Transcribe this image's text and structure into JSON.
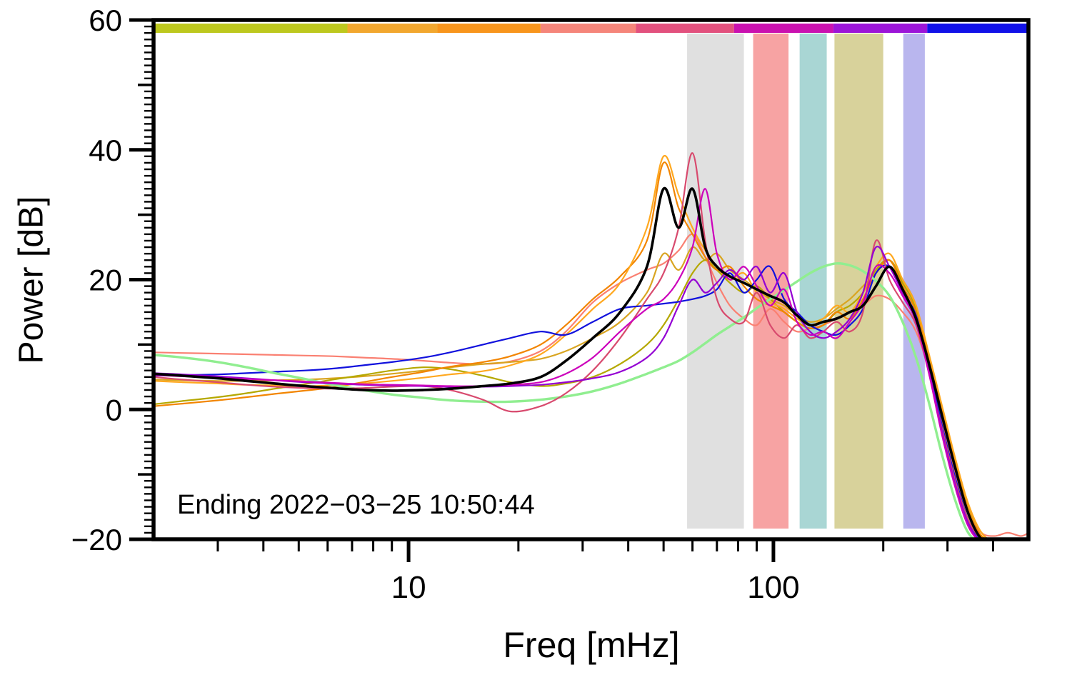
{
  "chart_data": {
    "type": "line",
    "title": "",
    "xlabel": "Freq [mHz]",
    "ylabel": "Power [dB]",
    "annotation": "Ending 2022−03−25 10:50:44",
    "x_scale": "log",
    "xlim": [
      2,
      500
    ],
    "ylim": [
      -20,
      60
    ],
    "grid": false,
    "legend": "none",
    "x_major_ticks": [
      10,
      100
    ],
    "x_major_labels": [
      "10",
      "100"
    ],
    "x_minor_ticks": [
      3,
      4,
      5,
      6,
      7,
      8,
      9,
      20,
      30,
      40,
      50,
      60,
      70,
      80,
      90,
      200,
      300,
      400
    ],
    "y_major_ticks": [
      -20,
      0,
      20,
      40,
      60
    ],
    "y_major_labels": [
      "−20",
      "0",
      "20",
      "40",
      "60"
    ],
    "y_minor_step": 1,
    "bands": [
      {
        "name": "band-gray",
        "from": 58,
        "to": 83,
        "color": "#e0e0e0"
      },
      {
        "name": "band-pink",
        "from": 88,
        "to": 110,
        "color": "#f7a3a3"
      },
      {
        "name": "band-teal",
        "from": 118,
        "to": 140,
        "color": "#a9d6d4"
      },
      {
        "name": "band-khaki",
        "from": 147,
        "to": 200,
        "color": "#d8d29b"
      },
      {
        "name": "band-lavender",
        "from": 227,
        "to": 260,
        "color": "#b9b6ee"
      }
    ],
    "top_colorbar": [
      {
        "from": 2,
        "to": 6.8,
        "color": "#bdc81e"
      },
      {
        "from": 6.8,
        "to": 12,
        "color": "#f2a72e"
      },
      {
        "from": 12,
        "to": 23,
        "color": "#f8951c"
      },
      {
        "from": 23,
        "to": 42,
        "color": "#f5857a"
      },
      {
        "from": 42,
        "to": 78,
        "color": "#e2517e"
      },
      {
        "from": 78,
        "to": 146,
        "color": "#ca12b0"
      },
      {
        "from": 146,
        "to": 264,
        "color": "#9c15d8"
      },
      {
        "from": 264,
        "to": 500,
        "color": "#1212e8"
      }
    ],
    "x": [
      2,
      2.4,
      3,
      3.6,
      4.3,
      5.2,
      6.2,
      7.5,
      9,
      11,
      13,
      16,
      19,
      23,
      27,
      32,
      38,
      45,
      50,
      55,
      60,
      65,
      70,
      76,
      83,
      90,
      98,
      107,
      116,
      126,
      137,
      149,
      162,
      176,
      191,
      208,
      226,
      246,
      267,
      290,
      315,
      342,
      372,
      404,
      439,
      477,
      500
    ],
    "series": [
      {
        "name": "salmon",
        "color": "#fa8072",
        "width": 2.2,
        "values": [
          8.8,
          8.7,
          8.6,
          8.5,
          8.4,
          8.3,
          8.2,
          8.0,
          7.8,
          7.5,
          7.2,
          7.0,
          7.4,
          9,
          12,
          16.5,
          19.5,
          21.5,
          22.5,
          24.5,
          27,
          23.5,
          19.5,
          16,
          14,
          13,
          15.5,
          13.5,
          12,
          12.5,
          13,
          14,
          15,
          16,
          17.5,
          17,
          15,
          12,
          6,
          -2,
          -10,
          -16,
          -19,
          -19.5,
          -19,
          -19.5,
          -19
        ]
      },
      {
        "name": "goldenrod",
        "color": "#d9a521",
        "width": 2.2,
        "values": [
          4.6,
          4.5,
          4.4,
          4.4,
          4.5,
          4.6,
          4.8,
          5.1,
          5.5,
          6.0,
          6.5,
          7.0,
          7.3,
          7.8,
          9,
          11,
          13.5,
          18,
          24,
          21.5,
          25,
          23,
          24,
          21.5,
          20,
          18.5,
          17,
          16,
          14.5,
          13.5,
          14,
          15.5,
          17,
          19,
          21,
          23,
          20,
          16,
          8,
          0,
          -8,
          -15,
          -19,
          -20.5,
          -20.5,
          -20.5,
          -20.5
        ]
      },
      {
        "name": "olive",
        "color": "#b5a800",
        "width": 2.2,
        "values": [
          0.8,
          1.3,
          1.9,
          2.5,
          3.2,
          3.9,
          4.6,
          5.3,
          6.0,
          6.5,
          6.2,
          5.2,
          4.2,
          3.6,
          4.0,
          5.0,
          7.0,
          10,
          13,
          17,
          21,
          23,
          21.5,
          19.5,
          18,
          19,
          17,
          15,
          13.5,
          12.5,
          13,
          15,
          16,
          18,
          21.5,
          23,
          19.5,
          15.5,
          7.5,
          -1,
          -9,
          -16,
          -19.5,
          -20.5,
          -20.5,
          -20.5,
          -20.5
        ]
      },
      {
        "name": "dark-orange",
        "color": "#f28500",
        "width": 2.2,
        "values": [
          0.5,
          0.9,
          1.4,
          1.9,
          2.4,
          2.9,
          3.4,
          4.2,
          5.0,
          5.8,
          6.6,
          7.3,
          8.2,
          10,
          13,
          17,
          20.5,
          26,
          38,
          31,
          27,
          23.5,
          21.5,
          22,
          19,
          17,
          16,
          15,
          13.5,
          12.5,
          13,
          15,
          14,
          17,
          21,
          23,
          19,
          15,
          7.5,
          -0.5,
          -8.5,
          -15.5,
          -19.5,
          -20.5,
          -20.5,
          -20.5,
          -20.5
        ]
      },
      {
        "name": "orange",
        "color": "#ffa81f",
        "width": 2.2,
        "values": [
          4.4,
          4.2,
          4.0,
          3.8,
          3.7,
          3.6,
          3.7,
          4.0,
          4.4,
          4.9,
          5.4,
          5.9,
          6.8,
          8.5,
          11.5,
          15.5,
          19.5,
          28,
          39,
          33,
          28,
          24.5,
          22,
          20,
          21,
          18,
          16.5,
          15.5,
          14,
          13,
          14,
          16,
          15,
          18,
          22,
          24,
          20,
          16,
          8.5,
          0.5,
          -7.5,
          -14.5,
          -19,
          -20.5,
          -20.5,
          -20.5,
          -20.5
        ]
      },
      {
        "name": "blue",
        "color": "#1111dd",
        "width": 2.2,
        "values": [
          5.2,
          5.3,
          5.4,
          5.6,
          5.8,
          6.0,
          6.3,
          6.8,
          7.3,
          8.0,
          8.8,
          10,
          11,
          12,
          11.5,
          13.5,
          15.5,
          16,
          16.3,
          16.6,
          17,
          17.5,
          18.5,
          21,
          18,
          20,
          22,
          17,
          15,
          13,
          12,
          11.5,
          13,
          15.5,
          21,
          22,
          18,
          14.5,
          6.5,
          -2.5,
          -10.5,
          -17,
          -20.5,
          -20.5,
          -20.5,
          -20.5,
          -20.5
        ]
      },
      {
        "name": "pale-green",
        "color": "#90ee90",
        "width": 3.4,
        "values": [
          8.4,
          8.0,
          7.3,
          6.5,
          5.6,
          4.7,
          3.8,
          3.0,
          2.3,
          1.8,
          1.4,
          1.2,
          1.2,
          1.5,
          2.0,
          2.8,
          4.0,
          5.5,
          6.5,
          7.5,
          8.8,
          10.2,
          11.5,
          12.8,
          14.2,
          15.6,
          17.0,
          18.4,
          19.7,
          21.0,
          22.0,
          22.5,
          22.2,
          21.3,
          19.8,
          17.5,
          13.5,
          8.0,
          1.0,
          -7,
          -14,
          -19,
          -20.5,
          -20.5,
          -20.5,
          -20.5,
          -20.5
        ]
      },
      {
        "name": "crimson-pink",
        "color": "#d84a6e",
        "width": 2.2,
        "values": [
          5.0,
          4.6,
          4.2,
          3.8,
          3.5,
          3.3,
          3.2,
          3.3,
          3.5,
          3.6,
          3.0,
          1.5,
          -0.3,
          0.5,
          2.5,
          6,
          11,
          17,
          21,
          28,
          39.5,
          26,
          17,
          14,
          13.5,
          18,
          13,
          11,
          13,
          11,
          12,
          13.5,
          12,
          15,
          26,
          20,
          16.5,
          13,
          5.5,
          -3,
          -11,
          -17,
          -20,
          -20.5,
          -20.5,
          -20.5,
          -20.5
        ]
      },
      {
        "name": "dark-violet",
        "color": "#9400d3",
        "width": 2.2,
        "values": [
          5.6,
          5.4,
          5.1,
          4.8,
          4.5,
          4.2,
          4.0,
          3.8,
          3.7,
          3.6,
          3.5,
          3.5,
          3.6,
          3.8,
          4.2,
          4.8,
          5.8,
          8,
          11,
          16,
          20,
          18,
          19.5,
          21.5,
          20,
          22,
          18,
          21,
          15,
          12,
          11,
          12,
          14,
          18,
          25,
          22,
          18,
          14,
          6,
          -3.5,
          -11.5,
          -17.5,
          -20.5,
          -20.5,
          -20.5,
          -20.5,
          -20.5
        ]
      },
      {
        "name": "magenta",
        "color": "#cc00bb",
        "width": 2.2,
        "values": [
          5.3,
          5.1,
          4.9,
          4.7,
          4.5,
          4.3,
          4.1,
          3.9,
          3.8,
          3.7,
          3.6,
          3.6,
          3.8,
          4.2,
          5.5,
          8,
          12,
          15.5,
          17,
          20,
          25,
          34,
          24,
          20,
          22,
          19,
          16,
          18.5,
          13.5,
          11.5,
          12,
          11,
          13.5,
          16.5,
          22,
          21,
          17.5,
          13.5,
          5.5,
          -4,
          -12,
          -18,
          -20.5,
          -20.5,
          -20.5,
          -20.5,
          -20.5
        ]
      },
      {
        "name": "mean-black",
        "color": "#000000",
        "width": 3.6,
        "values": [
          5.5,
          5.2,
          4.8,
          4.4,
          4.0,
          3.6,
          3.3,
          3.0,
          2.9,
          3.0,
          3.2,
          3.6,
          4.0,
          5.0,
          7.5,
          11,
          15,
          22,
          34,
          28,
          34,
          25,
          22,
          20.5,
          19.5,
          18.5,
          17.5,
          16.5,
          14.5,
          13,
          13.5,
          14,
          15,
          16,
          19,
          22,
          18.5,
          14,
          7,
          -1,
          -9,
          -16,
          -20,
          -20.5,
          -20.5,
          -20.5,
          -20.5
        ]
      }
    ]
  }
}
